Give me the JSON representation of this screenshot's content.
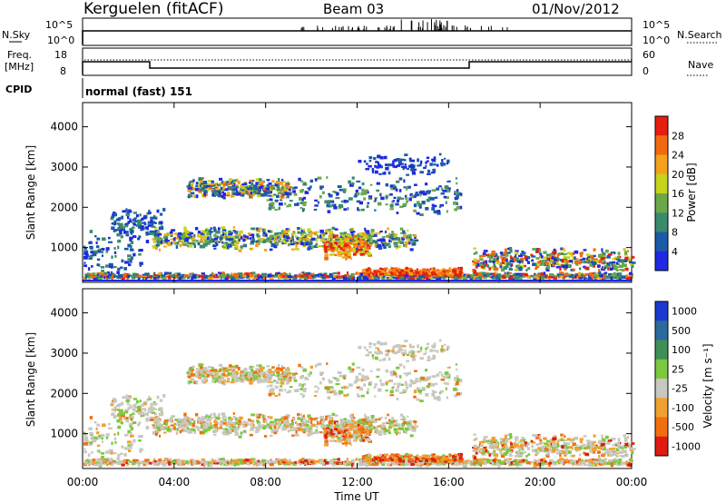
{
  "header": {
    "station": "Kerguelen (fitACF)",
    "beam": "Beam 03",
    "date": "01/Nov/2012"
  },
  "top_panels": {
    "nsky_label": "N.Sky",
    "nsky_ticks": [
      "10^5",
      "10^0"
    ],
    "nsearch_ticks": [
      "10^5",
      "10^0"
    ],
    "nsearch_label": "N.Search",
    "freq_label_1": "Freq.",
    "freq_label_2": "[MHz]",
    "freq_ticks": [
      "18",
      "8"
    ],
    "nave_ticks": [
      "60",
      "0"
    ],
    "nave_label": "Nave",
    "cpid_label": "CPID",
    "cpid_value": "normal (fast) 151"
  },
  "chart_data": [
    {
      "type": "heatmap",
      "ylabel": "Slant Range [km]",
      "yticks": [
        "1000",
        "2000",
        "3000",
        "4000"
      ],
      "ylim": [
        180,
        4600
      ],
      "colorbar_label": "Power [dB]",
      "colorbar_ticks": [
        "4",
        "8",
        "12",
        "16",
        "20",
        "24",
        "28"
      ],
      "colors": [
        "#1e2adf",
        "#1c5aa8",
        "#3a8a6c",
        "#6aa84a",
        "#c6d41e",
        "#f4a21c",
        "#f26a10",
        "#e61e10"
      ]
    },
    {
      "type": "heatmap",
      "ylabel": "Slant Range [km]",
      "yticks": [
        "1000",
        "2000",
        "3000",
        "4000"
      ],
      "ylim": [
        180,
        4600
      ],
      "colorbar_label": "Velocity [m s⁻¹]",
      "colorbar_ticks": [
        "1000",
        "500",
        "100",
        "25",
        "-25",
        "-100",
        "-500",
        "-1000"
      ],
      "colors": [
        "#1c3ad0",
        "#2a6a9c",
        "#3f8f58",
        "#7cc83e",
        "#c8c8c0",
        "#f0a030",
        "#f07010",
        "#e01c10"
      ]
    }
  ],
  "xaxis": {
    "ticks": [
      "00:00",
      "04:00",
      "08:00",
      "12:00",
      "16:00",
      "20:00",
      "00:00"
    ],
    "label": "Time UT"
  }
}
